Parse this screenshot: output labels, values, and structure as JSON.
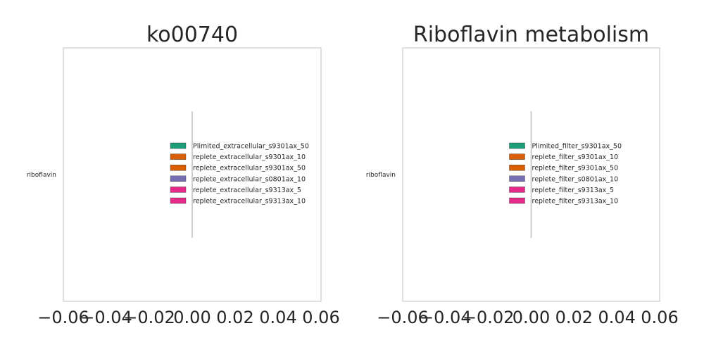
{
  "chart_data": [
    {
      "type": "bar",
      "orientation": "horizontal",
      "title": "ko00740",
      "categories": [
        "riboflavin"
      ],
      "series": [
        {
          "name": "Plimited_extracellular_s9301ax_50",
          "color": "#1b9e77",
          "values": [
            0
          ]
        },
        {
          "name": "replete_extracellular_s9301ax_10",
          "color": "#d95f02",
          "values": [
            0
          ]
        },
        {
          "name": "replete_extracellular_s9301ax_50",
          "color": "#d95f02",
          "values": [
            0
          ]
        },
        {
          "name": "replete_extracellular_s0801ax_10",
          "color": "#7570b3",
          "values": [
            0
          ]
        },
        {
          "name": "replete_extracellular_s9313ax_5",
          "color": "#e7298a",
          "values": [
            0
          ]
        },
        {
          "name": "replete_extracellular_s9313ax_10",
          "color": "#e7298a",
          "values": [
            0
          ]
        }
      ],
      "xlim": [
        -0.06,
        0.06
      ],
      "xticks": [
        "−0.06",
        "−0.04",
        "−0.02",
        "0.00",
        "0.02",
        "0.04",
        "0.06"
      ],
      "xlabel": "",
      "ylabel": "",
      "legend": "center-right",
      "grid": false
    },
    {
      "type": "bar",
      "orientation": "horizontal",
      "title": "Riboflavin metabolism",
      "categories": [
        "riboflavin"
      ],
      "series": [
        {
          "name": "Plimited_filter_s9301ax_50",
          "color": "#1b9e77",
          "values": [
            0
          ]
        },
        {
          "name": "replete_filter_s9301ax_10",
          "color": "#d95f02",
          "values": [
            0
          ]
        },
        {
          "name": "replete_filter_s9301ax_50",
          "color": "#d95f02",
          "values": [
            0
          ]
        },
        {
          "name": "replete_filter_s0801ax_10",
          "color": "#7570b3",
          "values": [
            0
          ]
        },
        {
          "name": "replete_filter_s9313ax_5",
          "color": "#e7298a",
          "values": [
            0
          ]
        },
        {
          "name": "replete_filter_s9313ax_10",
          "color": "#e7298a",
          "values": [
            0
          ]
        }
      ],
      "xlim": [
        -0.06,
        0.06
      ],
      "xticks": [
        "−0.06",
        "−0.04",
        "−0.02",
        "0.00",
        "0.02",
        "0.04",
        "0.06"
      ],
      "xlabel": "",
      "ylabel": "",
      "legend": "center-right",
      "grid": false
    }
  ]
}
